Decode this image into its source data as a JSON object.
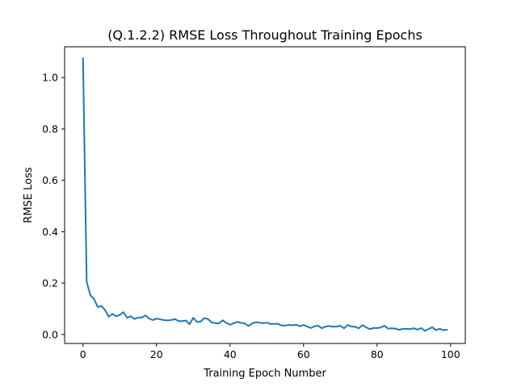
{
  "chart_data": {
    "type": "line",
    "title": "(Q.1.2.2) RMSE Loss Throughout Training Epochs",
    "xlabel": "Training Epoch Number",
    "ylabel": "RMSE Loss",
    "xlim": [
      -5,
      104
    ],
    "ylim": [
      -0.035,
      1.12
    ],
    "xticks": [
      0,
      20,
      40,
      60,
      80,
      100
    ],
    "xtick_labels": [
      "0",
      "20",
      "40",
      "60",
      "80",
      "100"
    ],
    "yticks": [
      0.0,
      0.2,
      0.4,
      0.6,
      0.8,
      1.0
    ],
    "ytick_labels": [
      "0.0",
      "0.2",
      "0.4",
      "0.6",
      "0.8",
      "1.0"
    ],
    "grid": false,
    "legend": "none",
    "series": [
      {
        "color": "#1f77b4",
        "x": [
          0,
          1,
          2,
          3,
          4,
          5,
          6,
          7,
          8,
          9,
          10,
          11,
          12,
          13,
          14,
          15,
          16,
          17,
          18,
          19,
          20,
          21,
          22,
          23,
          24,
          25,
          26,
          27,
          28,
          29,
          30,
          31,
          32,
          33,
          34,
          35,
          36,
          37,
          38,
          39,
          40,
          41,
          42,
          43,
          44,
          45,
          46,
          47,
          48,
          49,
          50,
          51,
          52,
          53,
          54,
          55,
          56,
          57,
          58,
          59,
          60,
          61,
          62,
          63,
          64,
          65,
          66,
          67,
          68,
          69,
          70,
          71,
          72,
          73,
          74,
          75,
          76,
          77,
          78,
          79,
          80,
          81,
          82,
          83,
          84,
          85,
          86,
          87,
          88,
          89,
          90,
          91,
          92,
          93,
          94,
          95,
          96,
          97,
          98,
          99
        ],
        "y": [
          1.075,
          0.205,
          0.153,
          0.138,
          0.107,
          0.111,
          0.095,
          0.069,
          0.08,
          0.071,
          0.076,
          0.087,
          0.065,
          0.071,
          0.06,
          0.066,
          0.066,
          0.074,
          0.062,
          0.056,
          0.062,
          0.059,
          0.056,
          0.055,
          0.056,
          0.06,
          0.052,
          0.052,
          0.054,
          0.04,
          0.065,
          0.049,
          0.05,
          0.064,
          0.06,
          0.047,
          0.044,
          0.043,
          0.055,
          0.045,
          0.038,
          0.044,
          0.049,
          0.045,
          0.043,
          0.033,
          0.043,
          0.048,
          0.046,
          0.044,
          0.046,
          0.041,
          0.041,
          0.042,
          0.035,
          0.035,
          0.037,
          0.036,
          0.038,
          0.032,
          0.037,
          0.031,
          0.025,
          0.032,
          0.034,
          0.024,
          0.031,
          0.033,
          0.03,
          0.031,
          0.034,
          0.024,
          0.037,
          0.031,
          0.03,
          0.024,
          0.036,
          0.028,
          0.021,
          0.025,
          0.025,
          0.027,
          0.034,
          0.023,
          0.024,
          0.023,
          0.018,
          0.022,
          0.022,
          0.021,
          0.024,
          0.019,
          0.025,
          0.014,
          0.021,
          0.028,
          0.017,
          0.022,
          0.017,
          0.018
        ]
      }
    ]
  }
}
